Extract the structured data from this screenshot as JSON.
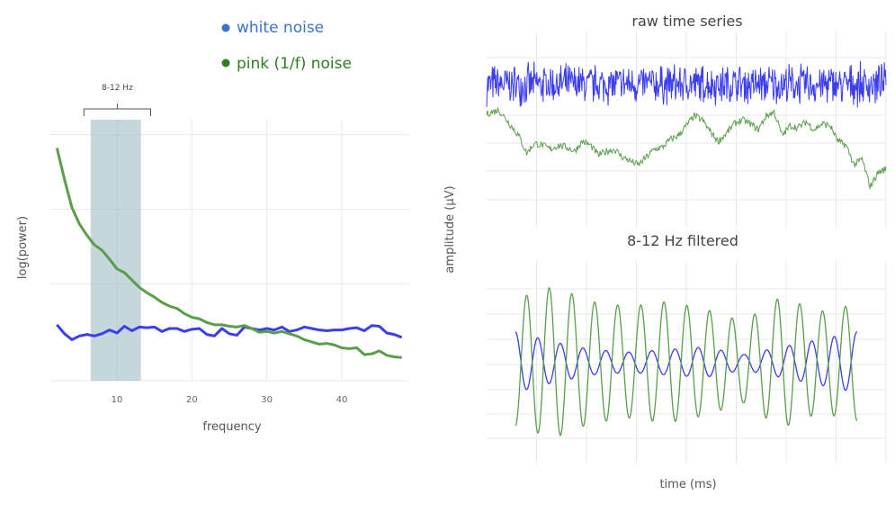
{
  "colors": {
    "white": "#3a3df0",
    "pink": "#5a9e4b",
    "legend_white": "#3a74c9",
    "legend_pink": "#2e7d1f",
    "band": "#9fbcc4",
    "grid": "#e8e8e8"
  },
  "legend": {
    "white_label": "white noise",
    "pink_label": "pink (1/f) noise"
  },
  "chart_data": [
    {
      "type": "line",
      "title": "",
      "xlabel": "frequency",
      "ylabel": "log(power)",
      "xlim": [
        1,
        49
      ],
      "ylim": [
        -0.3,
        3.2
      ],
      "x_ticks": [
        10,
        20,
        30,
        40
      ],
      "x_tick_labels": [
        "10",
        "20",
        "30",
        "40"
      ],
      "grid": true,
      "band": {
        "label": "8-12 Hz",
        "x_range": [
          6.5,
          13.2
        ],
        "bracket_range": [
          5.6,
          14.5
        ]
      },
      "series": [
        {
          "name": "white noise",
          "x": [
            2,
            3,
            4,
            5,
            6,
            7,
            8,
            9,
            10,
            11,
            12,
            13,
            14,
            15,
            16,
            17,
            18,
            19,
            20,
            21,
            22,
            23,
            24,
            25,
            26,
            27,
            28,
            29,
            30,
            31,
            32,
            33,
            34,
            35,
            36,
            37,
            38,
            39,
            40,
            41,
            42,
            43,
            44,
            45,
            46,
            47,
            48
          ],
          "values": [
            0.45,
            0.33,
            0.25,
            0.3,
            0.32,
            0.3,
            0.33,
            0.38,
            0.34,
            0.43,
            0.37,
            0.42,
            0.41,
            0.42,
            0.36,
            0.4,
            0.4,
            0.36,
            0.39,
            0.4,
            0.32,
            0.3,
            0.4,
            0.33,
            0.31,
            0.42,
            0.4,
            0.38,
            0.4,
            0.38,
            0.42,
            0.36,
            0.38,
            0.42,
            0.4,
            0.38,
            0.37,
            0.38,
            0.38,
            0.4,
            0.41,
            0.37,
            0.44,
            0.43,
            0.34,
            0.32,
            0.28
          ]
        },
        {
          "name": "pink (1/f) noise",
          "x": [
            2,
            3,
            4,
            5,
            6,
            7,
            8,
            9,
            10,
            11,
            12,
            13,
            14,
            15,
            16,
            17,
            18,
            19,
            20,
            21,
            22,
            23,
            24,
            25,
            26,
            27,
            28,
            29,
            30,
            31,
            32,
            33,
            34,
            35,
            36,
            37,
            38,
            39,
            40,
            41,
            42,
            43,
            44,
            45,
            46,
            47,
            48
          ],
          "values": [
            2.82,
            2.4,
            2.02,
            1.8,
            1.65,
            1.52,
            1.45,
            1.33,
            1.2,
            1.15,
            1.05,
            0.95,
            0.88,
            0.82,
            0.75,
            0.7,
            0.67,
            0.6,
            0.55,
            0.53,
            0.48,
            0.45,
            0.45,
            0.43,
            0.42,
            0.44,
            0.4,
            0.35,
            0.36,
            0.34,
            0.36,
            0.33,
            0.3,
            0.25,
            0.22,
            0.19,
            0.2,
            0.18,
            0.14,
            0.13,
            0.14,
            0.05,
            0.06,
            0.1,
            0.04,
            0.02,
            0.01
          ]
        }
      ]
    },
    {
      "type": "line",
      "title": "raw time series",
      "xlabel": "",
      "ylabel": "amplitude (µV)",
      "xlim": [
        0,
        100
      ],
      "ylim": [
        -5,
        5
      ],
      "grid": true,
      "series": [
        {
          "name": "white noise",
          "center": 2.3,
          "amplitude": 1.0
        },
        {
          "name": "pink (1/f) noise",
          "x": [
            0,
            3,
            5,
            8,
            10,
            12,
            14,
            16,
            18,
            20,
            22,
            24,
            26,
            28,
            30,
            32,
            34,
            36,
            38,
            40,
            42,
            44,
            46,
            48,
            50,
            52,
            54,
            56,
            58,
            60,
            62,
            64,
            66,
            68,
            70,
            72,
            74,
            76,
            78,
            80,
            82,
            84,
            86,
            88,
            90,
            92,
            94,
            96,
            98,
            100
          ],
          "values": [
            0.8,
            1.0,
            0.5,
            -0.3,
            -1.2,
            -0.7,
            -0.8,
            -1.0,
            -0.8,
            -0.9,
            -1.1,
            -0.6,
            -0.8,
            -1.3,
            -1.1,
            -1.0,
            -1.4,
            -1.6,
            -1.8,
            -1.4,
            -1.0,
            -0.9,
            -0.5,
            -0.3,
            0.2,
            0.7,
            0.5,
            -0.1,
            -0.6,
            -0.2,
            0.3,
            0.5,
            0.3,
            0.0,
            0.7,
            0.9,
            -0.3,
            0.2,
            0.1,
            0.4,
            0.0,
            0.3,
            0.2,
            -0.6,
            -0.8,
            -1.8,
            -1.5,
            -2.9,
            -2.2,
            -2.0
          ]
        }
      ]
    },
    {
      "type": "line",
      "title": "8-12 Hz filtered",
      "xlabel": "time (ms)",
      "ylabel": "",
      "xlim": [
        0,
        100
      ],
      "ylim": [
        -4,
        4
      ],
      "grid": true,
      "series": [
        {
          "name": "white noise",
          "frequency_hz": 10,
          "amplitude_envelope": [
            1.2,
            0.8,
            0.5,
            0.4,
            0.5,
            0.6,
            0.3,
            0.6,
            0.9,
            1.2
          ]
        },
        {
          "name": "pink (1/f) noise",
          "frequency_hz": 10,
          "amplitude_envelope": [
            2.5,
            3.0,
            2.4,
            2.2,
            2.4,
            2.1,
            1.6,
            2.6,
            2.0,
            2.3
          ]
        }
      ]
    }
  ]
}
